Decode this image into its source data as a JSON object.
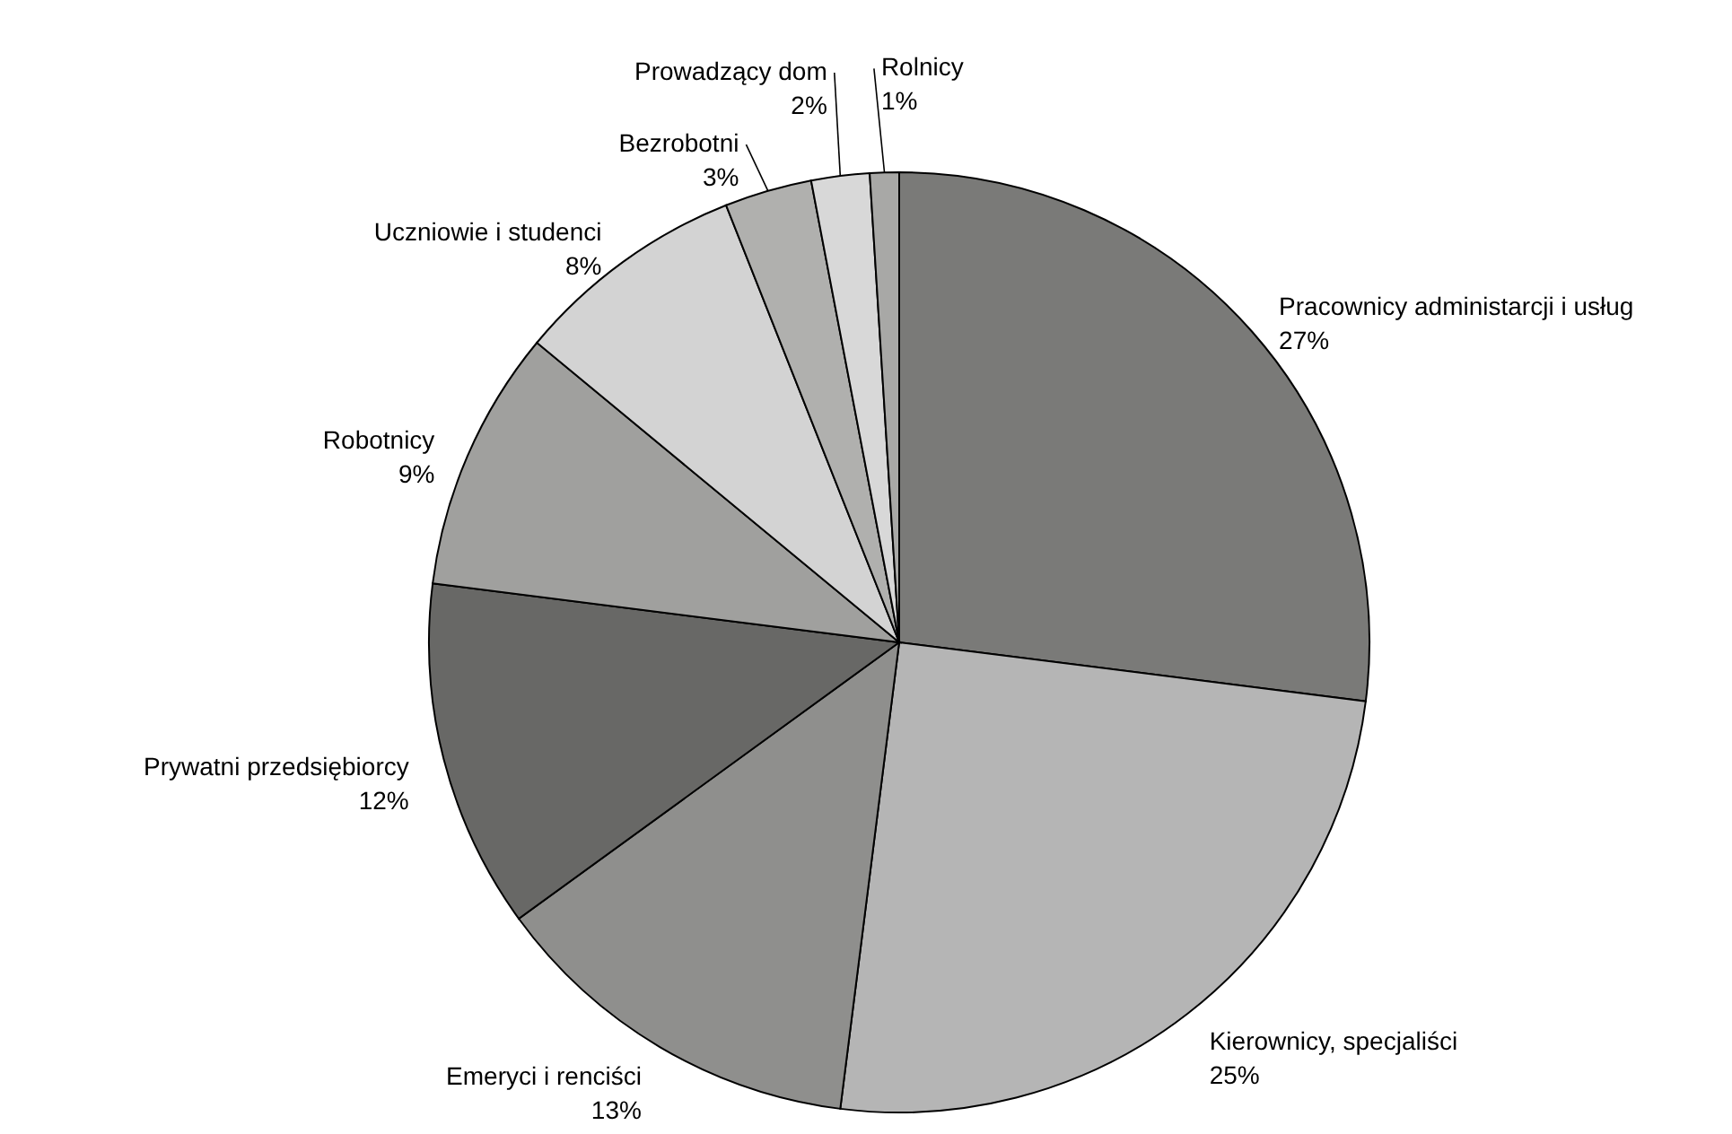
{
  "chart_data": {
    "type": "pie",
    "categories": [
      "Pracownicy administarcji i usług",
      "Kierownicy, specjaliści",
      "Emeryci i renciści",
      "Prywatni przedsiębiorcy",
      "Robotnicy",
      "Uczniowie i studenci",
      "Bezrobotni",
      "Prowadzący dom",
      "Rolnicy"
    ],
    "values": [
      27,
      25,
      13,
      12,
      9,
      8,
      3,
      2,
      1
    ],
    "value_labels": [
      "27%",
      "25%",
      "13%",
      "12%",
      "9%",
      "8%",
      "3%",
      "2%",
      "1%"
    ],
    "colors": [
      "#7a7a78",
      "#b5b5b5",
      "#8f8f8d",
      "#686866",
      "#a0a09e",
      "#d3d3d3",
      "#b0b0ae",
      "#d8d8d8",
      "#a8a8a6"
    ]
  }
}
